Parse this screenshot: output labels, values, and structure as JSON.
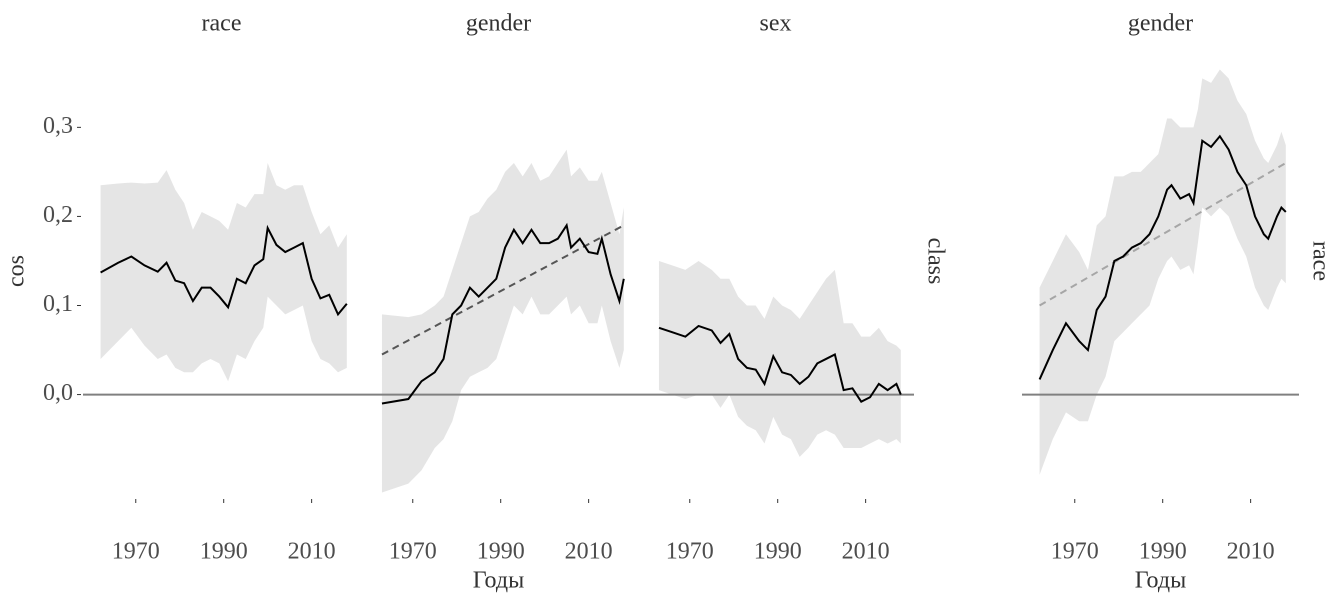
{
  "chart_data": [
    {
      "type": "line",
      "title": "race",
      "ylabel": "cos",
      "x": [
        1962,
        1966,
        1969,
        1972,
        1975,
        1977,
        1979,
        1981,
        1983,
        1985,
        1987,
        1989,
        1991,
        1993,
        1995,
        1997,
        1999,
        2000,
        2002,
        2004,
        2006,
        2008,
        2010,
        2012,
        2014,
        2016,
        2018
      ],
      "values": [
        0.137,
        0.148,
        0.155,
        0.145,
        0.138,
        0.148,
        0.128,
        0.125,
        0.105,
        0.12,
        0.12,
        0.11,
        0.098,
        0.13,
        0.125,
        0.145,
        0.152,
        0.187,
        0.168,
        0.16,
        0.165,
        0.17,
        0.13,
        0.108,
        0.112,
        0.09,
        0.102
      ],
      "upper": [
        0.235,
        0.237,
        0.238,
        0.237,
        0.238,
        0.252,
        0.23,
        0.215,
        0.185,
        0.205,
        0.2,
        0.195,
        0.185,
        0.215,
        0.21,
        0.225,
        0.225,
        0.26,
        0.235,
        0.23,
        0.235,
        0.235,
        0.205,
        0.18,
        0.19,
        0.165,
        0.18
      ],
      "lower": [
        0.04,
        0.06,
        0.075,
        0.055,
        0.04,
        0.045,
        0.03,
        0.025,
        0.025,
        0.035,
        0.04,
        0.035,
        0.015,
        0.045,
        0.04,
        0.06,
        0.075,
        0.11,
        0.1,
        0.09,
        0.095,
        0.1,
        0.06,
        0.04,
        0.035,
        0.025,
        0.03
      ],
      "color": "#000000",
      "ribbon_color": "#e5e5e5",
      "hline": 0,
      "hline_color": "#808080",
      "xlim": [
        1958,
        2021
      ],
      "xticks": [
        1970,
        1990,
        2010
      ],
      "ylim": [
        -0.115,
        0.37
      ],
      "yticks": [
        {
          "value": 0,
          "label": "0,0"
        },
        {
          "value": 0.1,
          "label": "0,1"
        },
        {
          "value": 0.2,
          "label": "0,2"
        },
        {
          "value": 0.3,
          "label": "0,3"
        }
      ]
    },
    {
      "type": "line",
      "title": "gender",
      "xlabel": "Годы",
      "x": [
        1963,
        1969,
        1972,
        1975,
        1977,
        1979,
        1981,
        1983,
        1985,
        1987,
        1989,
        1991,
        1993,
        1995,
        1997,
        1999,
        2001,
        2003,
        2005,
        2006,
        2008,
        2010,
        2012,
        2013,
        2015,
        2017,
        2018
      ],
      "values": [
        -0.01,
        -0.005,
        0.015,
        0.025,
        0.04,
        0.09,
        0.1,
        0.12,
        0.11,
        0.12,
        0.13,
        0.165,
        0.185,
        0.17,
        0.185,
        0.17,
        0.17,
        0.175,
        0.19,
        0.165,
        0.175,
        0.16,
        0.158,
        0.175,
        0.135,
        0.105,
        0.13
      ],
      "upper": [
        0.09,
        0.087,
        0.09,
        0.1,
        0.11,
        0.14,
        0.17,
        0.2,
        0.205,
        0.22,
        0.23,
        0.25,
        0.26,
        0.245,
        0.26,
        0.24,
        0.245,
        0.26,
        0.275,
        0.245,
        0.255,
        0.24,
        0.24,
        0.25,
        0.215,
        0.18,
        0.21
      ],
      "lower": [
        -0.11,
        -0.1,
        -0.085,
        -0.06,
        -0.05,
        -0.03,
        0.005,
        0.02,
        0.025,
        0.03,
        0.04,
        0.07,
        0.1,
        0.09,
        0.11,
        0.09,
        0.09,
        0.1,
        0.11,
        0.09,
        0.1,
        0.08,
        0.08,
        0.1,
        0.06,
        0.03,
        0.05
      ],
      "trend": {
        "x": [
          1963,
          2018
        ],
        "values": [
          0.045,
          0.19
        ],
        "color": "#555555"
      },
      "color": "#000000",
      "ribbon_color": "#e5e5e5",
      "hline": 0,
      "hline_color": "#808080",
      "xlim": [
        1958,
        2021
      ],
      "xticks": [
        1970,
        1990,
        2010
      ],
      "ylim": [
        -0.115,
        0.37
      ]
    },
    {
      "type": "line",
      "title": "sex",
      "row_label": "class",
      "x": [
        1963,
        1966,
        1969,
        1972,
        1975,
        1977,
        1979,
        1981,
        1983,
        1985,
        1987,
        1989,
        1991,
        1993,
        1995,
        1997,
        1999,
        2001,
        2003,
        2005,
        2007,
        2009,
        2011,
        2013,
        2015,
        2017,
        2018
      ],
      "values": [
        0.075,
        0.07,
        0.065,
        0.077,
        0.072,
        0.058,
        0.068,
        0.04,
        0.03,
        0.028,
        0.012,
        0.043,
        0.025,
        0.022,
        0.012,
        0.02,
        0.035,
        0.04,
        0.045,
        0.005,
        0.007,
        -0.008,
        -0.003,
        0.012,
        0.005,
        0.012,
        0.0
      ],
      "upper": [
        0.15,
        0.145,
        0.14,
        0.15,
        0.14,
        0.13,
        0.13,
        0.11,
        0.1,
        0.1,
        0.085,
        0.11,
        0.1,
        0.095,
        0.085,
        0.1,
        0.115,
        0.13,
        0.14,
        0.08,
        0.08,
        0.065,
        0.065,
        0.075,
        0.06,
        0.055,
        0.05
      ],
      "lower": [
        0.005,
        0.0,
        -0.005,
        0.0,
        0.0,
        -0.015,
        0.0,
        -0.025,
        -0.035,
        -0.04,
        -0.055,
        -0.025,
        -0.045,
        -0.05,
        -0.07,
        -0.06,
        -0.045,
        -0.04,
        -0.045,
        -0.06,
        -0.06,
        -0.06,
        -0.055,
        -0.05,
        -0.055,
        -0.05,
        -0.055
      ],
      "color": "#000000",
      "ribbon_color": "#e5e5e5",
      "hline": 0,
      "hline_color": "#808080",
      "xlim": [
        1958,
        2021
      ],
      "xticks": [
        1970,
        1990,
        2010
      ],
      "ylim": [
        -0.115,
        0.37
      ]
    },
    {
      "type": "line",
      "title": "gender",
      "row_label": "race",
      "xlabel": "Годы",
      "x": [
        1962,
        1965,
        1968,
        1971,
        1973,
        1975,
        1977,
        1979,
        1981,
        1983,
        1985,
        1987,
        1989,
        1991,
        1992,
        1994,
        1996,
        1997,
        1998,
        1999,
        2001,
        2003,
        2005,
        2007,
        2009,
        2011,
        2013,
        2014,
        2016,
        2017,
        2018
      ],
      "values": [
        0.017,
        0.05,
        0.08,
        0.06,
        0.05,
        0.095,
        0.11,
        0.15,
        0.155,
        0.165,
        0.17,
        0.18,
        0.2,
        0.23,
        0.235,
        0.22,
        0.225,
        0.215,
        0.25,
        0.285,
        0.278,
        0.29,
        0.275,
        0.25,
        0.235,
        0.2,
        0.18,
        0.175,
        0.2,
        0.21,
        0.205
      ],
      "upper": [
        0.12,
        0.15,
        0.18,
        0.16,
        0.14,
        0.19,
        0.2,
        0.245,
        0.245,
        0.25,
        0.25,
        0.26,
        0.27,
        0.31,
        0.31,
        0.3,
        0.3,
        0.3,
        0.32,
        0.355,
        0.35,
        0.365,
        0.355,
        0.33,
        0.315,
        0.285,
        0.265,
        0.26,
        0.28,
        0.295,
        0.28
      ],
      "lower": [
        -0.09,
        -0.05,
        -0.02,
        -0.03,
        -0.03,
        0.0,
        0.02,
        0.06,
        0.07,
        0.08,
        0.09,
        0.1,
        0.13,
        0.15,
        0.155,
        0.14,
        0.145,
        0.135,
        0.17,
        0.21,
        0.2,
        0.21,
        0.2,
        0.175,
        0.155,
        0.12,
        0.1,
        0.095,
        0.12,
        0.13,
        0.125
      ],
      "trend": {
        "x": [
          1962,
          2018
        ],
        "values": [
          0.1,
          0.26
        ],
        "color": "#a6a6a6"
      },
      "color": "#000000",
      "ribbon_color": "#e5e5e5",
      "hline": 0,
      "hline_color": "#808080",
      "xlim": [
        1958,
        2021
      ],
      "xticks": [
        1970,
        1990,
        2010
      ],
      "ylim": [
        -0.115,
        0.37
      ]
    }
  ]
}
